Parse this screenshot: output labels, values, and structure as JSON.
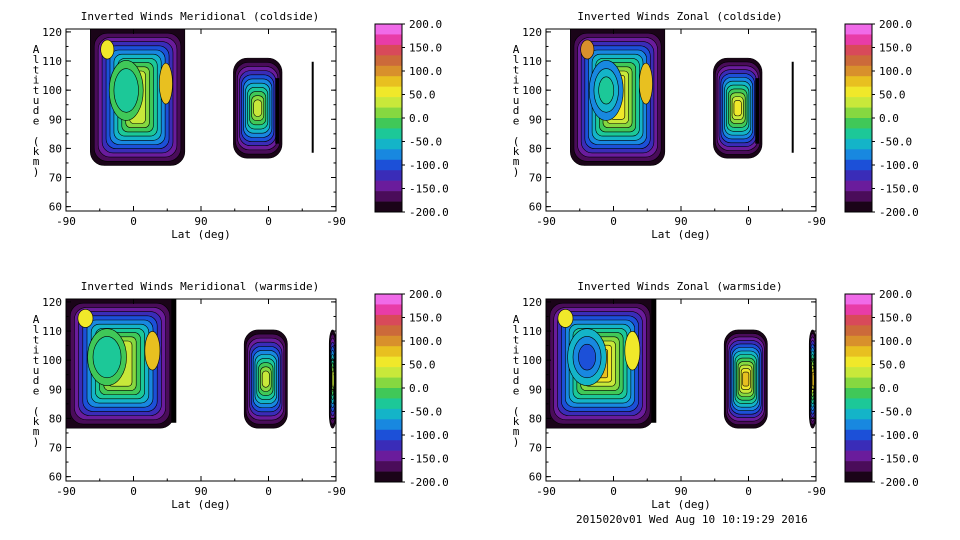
{
  "footer": "2015020v01 Wed Aug 10 10:19:29 2016",
  "colorbar": {
    "ticks": [
      "200.0",
      "150.0",
      "100.0",
      "50.0",
      "0.0",
      "-50.0",
      "-100.0",
      "-150.0",
      "-200.0"
    ],
    "colors": [
      "#f06ae8",
      "#e83ca8",
      "#d84a5a",
      "#cc6a3a",
      "#d8902c",
      "#e8c020",
      "#f0e82a",
      "#c8e83a",
      "#86d840",
      "#40c858",
      "#1cc898",
      "#14b4c8",
      "#1888e0",
      "#1c50d8",
      "#3a2cb8",
      "#6a1c9c",
      "#4a0c5a",
      "#1a0418"
    ]
  },
  "chart_data": [
    {
      "type": "heatmap",
      "title": "Inverted Winds Meridional (coldside)",
      "xlabel": "Lat (deg)",
      "ylabel": "Altitude (km)",
      "x_tick_labels": [
        "-90",
        "0",
        "90",
        "0",
        "-90"
      ],
      "y_tick_labels": [
        "60",
        "70",
        "80",
        "90",
        "100",
        "110",
        "120"
      ],
      "ylim": [
        60,
        120
      ],
      "colorbar_range": [
        -200,
        200
      ]
    },
    {
      "type": "heatmap",
      "title": "Inverted Winds Zonal (coldside)",
      "xlabel": "Lat (deg)",
      "ylabel": "Altitude (km)",
      "x_tick_labels": [
        "-90",
        "0",
        "90",
        "0",
        "-90"
      ],
      "y_tick_labels": [
        "60",
        "70",
        "80",
        "90",
        "100",
        "110",
        "120"
      ],
      "ylim": [
        60,
        120
      ],
      "colorbar_range": [
        -200,
        200
      ]
    },
    {
      "type": "heatmap",
      "title": "Inverted Winds Meridional (warmside)",
      "xlabel": "Lat (deg)",
      "ylabel": "Altitude (km)",
      "x_tick_labels": [
        "-90",
        "0",
        "90",
        "0",
        "-90"
      ],
      "y_tick_labels": [
        "60",
        "70",
        "80",
        "90",
        "100",
        "110",
        "120"
      ],
      "ylim": [
        60,
        120
      ],
      "colorbar_range": [
        -200,
        200
      ]
    },
    {
      "type": "heatmap",
      "title": "Inverted Winds Zonal (warmside)",
      "xlabel": "Lat (deg)",
      "ylabel": "Altitude (km)",
      "x_tick_labels": [
        "-90",
        "0",
        "90",
        "0",
        "-90"
      ],
      "y_tick_labels": [
        "60",
        "70",
        "80",
        "90",
        "100",
        "110",
        "120"
      ],
      "ylim": [
        60,
        120
      ],
      "colorbar_range": [
        -200,
        200
      ]
    }
  ]
}
